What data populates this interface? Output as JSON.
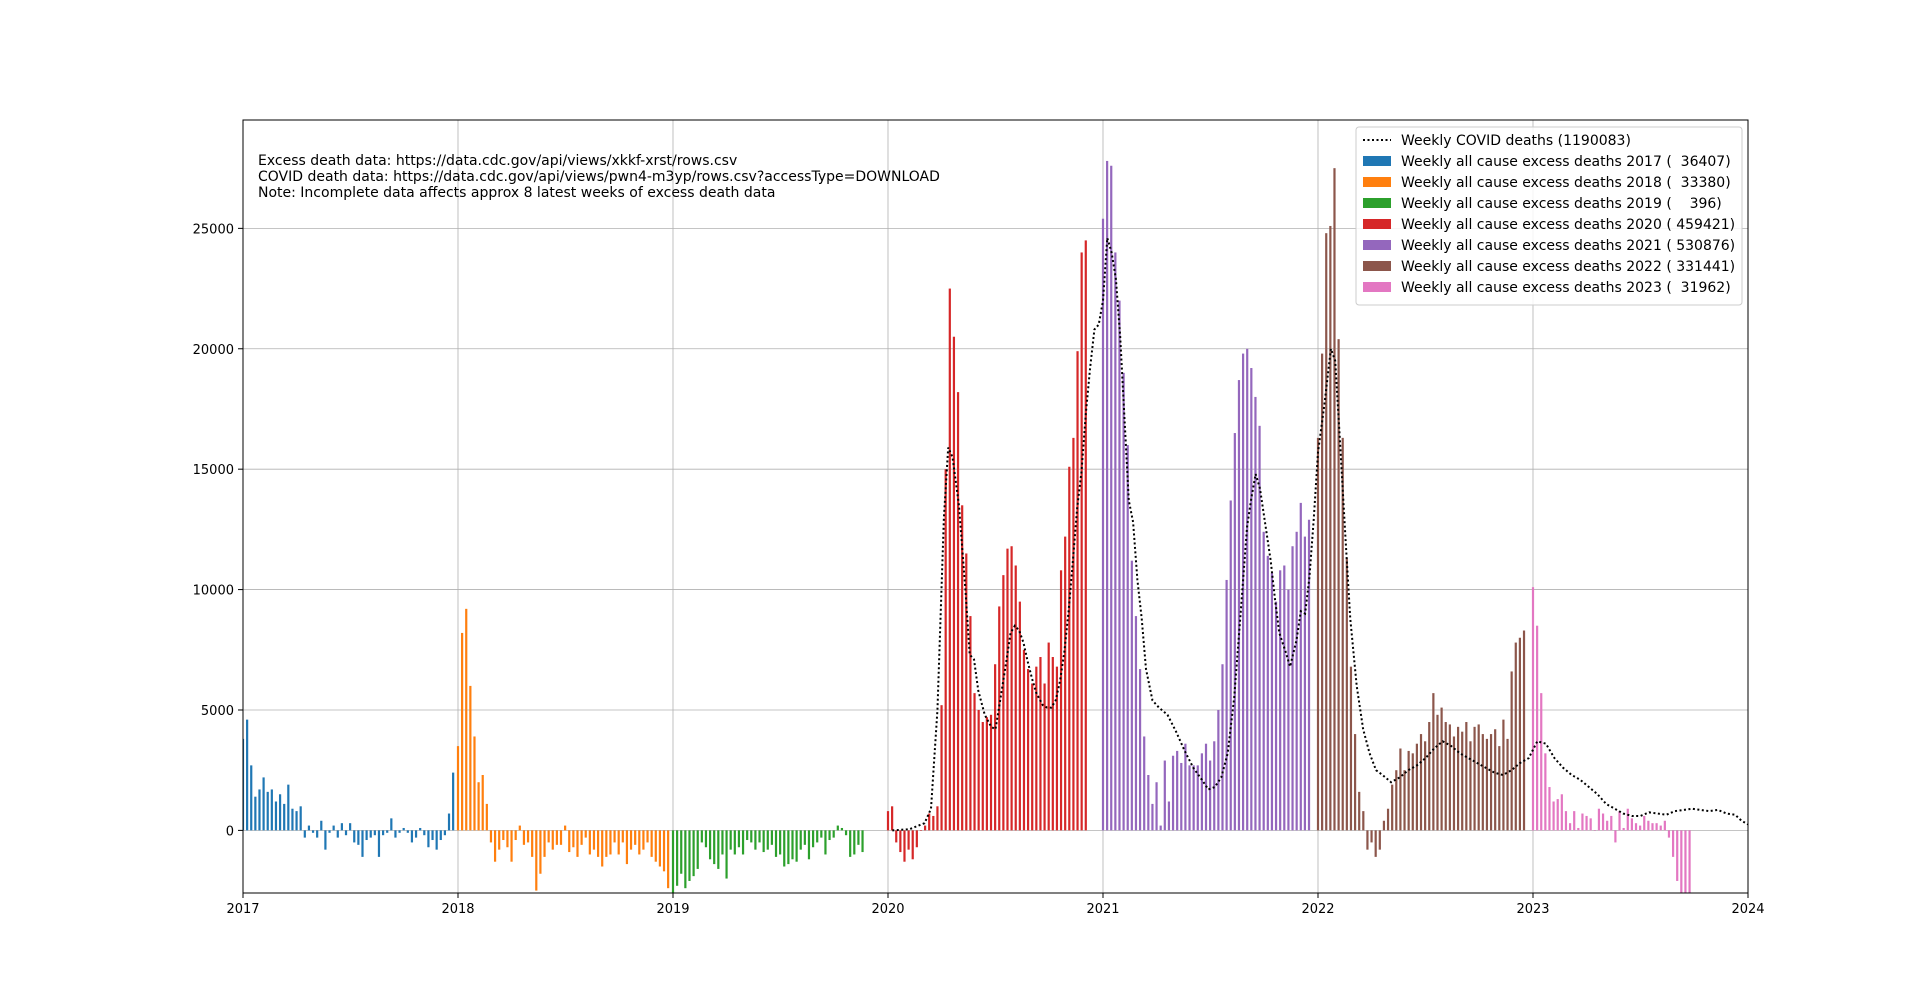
{
  "chart_data": {
    "type": "bar",
    "xlim": [
      2017,
      2024
    ],
    "ylim": [
      -2600,
      29500
    ],
    "grid": true,
    "legend_position": "top-right",
    "x_ticks": [
      {
        "value": 2017,
        "label": "2017"
      },
      {
        "value": 2018,
        "label": "2018"
      },
      {
        "value": 2019,
        "label": "2019"
      },
      {
        "value": 2020,
        "label": "2020"
      },
      {
        "value": 2021,
        "label": "2021"
      },
      {
        "value": 2022,
        "label": "2022"
      },
      {
        "value": 2023,
        "label": "2023"
      },
      {
        "value": 2024,
        "label": "2024"
      }
    ],
    "y_ticks": [
      {
        "value": 0,
        "label": "0"
      },
      {
        "value": 5000,
        "label": "5000"
      },
      {
        "value": 10000,
        "label": "10000"
      },
      {
        "value": 15000,
        "label": "15000"
      },
      {
        "value": 20000,
        "label": "20000"
      },
      {
        "value": 25000,
        "label": "25000"
      }
    ],
    "notes": [
      "Excess death data: https://data.cdc.gov/api/views/xkkf-xrst/rows.csv",
      "COVID death data: https://data.cdc.gov/api/views/pwn4-m3yp/rows.csv?accessType=DOWNLOAD",
      "Note: Incomplete data affects approx 8 latest weeks of excess death data"
    ],
    "covid_series": {
      "label": "Weekly COVID deaths (1190083)",
      "color": "#000000",
      "points": [
        [
          2020.02,
          0
        ],
        [
          2020.1,
          50
        ],
        [
          2020.17,
          300
        ],
        [
          2020.2,
          900
        ],
        [
          2020.23,
          5000
        ],
        [
          2020.26,
          13000
        ],
        [
          2020.28,
          15900
        ],
        [
          2020.3,
          15500
        ],
        [
          2020.33,
          13500
        ],
        [
          2020.36,
          10000
        ],
        [
          2020.38,
          7300
        ],
        [
          2020.4,
          7100
        ],
        [
          2020.42,
          5800
        ],
        [
          2020.45,
          4800
        ],
        [
          2020.48,
          4300
        ],
        [
          2020.5,
          4200
        ],
        [
          2020.52,
          5300
        ],
        [
          2020.55,
          7000
        ],
        [
          2020.57,
          8200
        ],
        [
          2020.59,
          8500
        ],
        [
          2020.61,
          8300
        ],
        [
          2020.63,
          7800
        ],
        [
          2020.65,
          7000
        ],
        [
          2020.67,
          6300
        ],
        [
          2020.69,
          5700
        ],
        [
          2020.72,
          5200
        ],
        [
          2020.74,
          5100
        ],
        [
          2020.76,
          5100
        ],
        [
          2020.78,
          5400
        ],
        [
          2020.8,
          6200
        ],
        [
          2020.82,
          7400
        ],
        [
          2020.84,
          9100
        ],
        [
          2020.86,
          11200
        ],
        [
          2020.88,
          13400
        ],
        [
          2020.9,
          14900
        ],
        [
          2020.92,
          17300
        ],
        [
          2020.94,
          19200
        ],
        [
          2020.96,
          20800
        ],
        [
          2020.98,
          21000
        ],
        [
          2021.0,
          22000
        ],
        [
          2021.02,
          24600
        ],
        [
          2021.04,
          24000
        ],
        [
          2021.06,
          22900
        ],
        [
          2021.08,
          20500
        ],
        [
          2021.1,
          17100
        ],
        [
          2021.12,
          13700
        ],
        [
          2021.14,
          12800
        ],
        [
          2021.16,
          10400
        ],
        [
          2021.18,
          8800
        ],
        [
          2021.2,
          6700
        ],
        [
          2021.23,
          5400
        ],
        [
          2021.26,
          5100
        ],
        [
          2021.3,
          4800
        ],
        [
          2021.34,
          4100
        ],
        [
          2021.38,
          3300
        ],
        [
          2021.42,
          2600
        ],
        [
          2021.46,
          2100
        ],
        [
          2021.49,
          1700
        ],
        [
          2021.52,
          1800
        ],
        [
          2021.55,
          2200
        ],
        [
          2021.58,
          3200
        ],
        [
          2021.61,
          5500
        ],
        [
          2021.64,
          9000
        ],
        [
          2021.67,
          12600
        ],
        [
          2021.69,
          13800
        ],
        [
          2021.71,
          14800
        ],
        [
          2021.73,
          14200
        ],
        [
          2021.75,
          13000
        ],
        [
          2021.78,
          11200
        ],
        [
          2021.8,
          9600
        ],
        [
          2021.82,
          8200
        ],
        [
          2021.85,
          7400
        ],
        [
          2021.87,
          6800
        ],
        [
          2021.9,
          7900
        ],
        [
          2021.92,
          9100
        ],
        [
          2021.94,
          9000
        ],
        [
          2021.96,
          10500
        ],
        [
          2021.98,
          12900
        ],
        [
          2022.0,
          15700
        ],
        [
          2022.03,
          17700
        ],
        [
          2022.06,
          20000
        ],
        [
          2022.08,
          19500
        ],
        [
          2022.1,
          16500
        ],
        [
          2022.13,
          11800
        ],
        [
          2022.15,
          8800
        ],
        [
          2022.18,
          6000
        ],
        [
          2022.21,
          4200
        ],
        [
          2022.24,
          3200
        ],
        [
          2022.27,
          2500
        ],
        [
          2022.3,
          2300
        ],
        [
          2022.34,
          2000
        ],
        [
          2022.38,
          2200
        ],
        [
          2022.42,
          2500
        ],
        [
          2022.46,
          2700
        ],
        [
          2022.5,
          3000
        ],
        [
          2022.54,
          3400
        ],
        [
          2022.58,
          3700
        ],
        [
          2022.62,
          3500
        ],
        [
          2022.66,
          3200
        ],
        [
          2022.7,
          3000
        ],
        [
          2022.74,
          2800
        ],
        [
          2022.78,
          2600
        ],
        [
          2022.82,
          2400
        ],
        [
          2022.86,
          2300
        ],
        [
          2022.9,
          2500
        ],
        [
          2022.94,
          2800
        ],
        [
          2022.98,
          3000
        ],
        [
          2023.02,
          3700
        ],
        [
          2023.06,
          3600
        ],
        [
          2023.1,
          3000
        ],
        [
          2023.14,
          2600
        ],
        [
          2023.18,
          2300
        ],
        [
          2023.22,
          2100
        ],
        [
          2023.26,
          1800
        ],
        [
          2023.3,
          1500
        ],
        [
          2023.34,
          1100
        ],
        [
          2023.38,
          900
        ],
        [
          2023.42,
          700
        ],
        [
          2023.46,
          600
        ],
        [
          2023.5,
          600
        ],
        [
          2023.54,
          750
        ],
        [
          2023.58,
          700
        ],
        [
          2023.62,
          650
        ],
        [
          2023.66,
          800
        ],
        [
          2023.7,
          850
        ],
        [
          2023.74,
          900
        ],
        [
          2023.78,
          850
        ],
        [
          2023.82,
          800
        ],
        [
          2023.86,
          850
        ],
        [
          2023.9,
          700
        ],
        [
          2023.94,
          650
        ],
        [
          2023.97,
          400
        ],
        [
          2024.0,
          250
        ]
      ]
    },
    "bar_series": [
      {
        "label": "Weekly all cause excess deaths 2017 (  36407)",
        "color": "#1f77b4",
        "start": 2017.0,
        "values": [
          3800,
          4600,
          2700,
          1400,
          1700,
          2200,
          1600,
          1700,
          1200,
          1500,
          1100,
          1900,
          900,
          800,
          1000,
          -300,
          200,
          -100,
          -300,
          400,
          -800,
          -100,
          200,
          -300,
          300,
          -200,
          300,
          -500,
          -600,
          -1100,
          -400,
          -300,
          -200,
          -1100,
          -200,
          -100,
          500,
          -300,
          -100,
          100,
          -100,
          -500,
          -300,
          100,
          -200,
          -700,
          -400,
          -800,
          -400,
          -200,
          700,
          2400
        ]
      },
      {
        "label": "Weekly all cause excess deaths 2018 (  33380)",
        "color": "#ff7f0e",
        "start": 2018.0,
        "values": [
          3500,
          8200,
          9200,
          6000,
          3900,
          2000,
          2300,
          1100,
          -500,
          -1300,
          -800,
          -400,
          -700,
          -1300,
          -400,
          200,
          -600,
          -500,
          -1100,
          -2500,
          -1800,
          -1100,
          -500,
          -800,
          -600,
          -600,
          200,
          -900,
          -700,
          -1100,
          -600,
          -300,
          -1000,
          -800,
          -1100,
          -1500,
          -1100,
          -1000,
          -500,
          -1000,
          -500,
          -1400,
          -800,
          -600,
          -1000,
          -800,
          -500,
          -1100,
          -1300,
          -1500,
          -1700,
          -2400
        ]
      },
      {
        "label": "Weekly all cause excess deaths 2019 (    396)",
        "color": "#2ca02c",
        "start": 2019.0,
        "values": [
          -2800,
          -2300,
          -1800,
          -2400,
          -2100,
          -1900,
          -1600,
          -500,
          -700,
          -1200,
          -1400,
          -1600,
          -1000,
          -2000,
          -800,
          -1000,
          -700,
          -1000,
          -400,
          -500,
          -800,
          -500,
          -900,
          -800,
          -600,
          -1100,
          -1000,
          -1500,
          -1400,
          -1200,
          -1300,
          -800,
          -600,
          -1200,
          -700,
          -500,
          -300,
          -1000,
          -400,
          -300,
          200,
          100,
          -200,
          -1100,
          -1000,
          -600,
          -900
        ]
      },
      {
        "label": "Weekly all cause excess deaths 2020 ( 459421)",
        "color": "#d62728",
        "start": 2020.0,
        "values": [
          800,
          1000,
          -500,
          -900,
          -1300,
          -800,
          -1200,
          -700,
          0,
          200,
          700,
          600,
          1000,
          5200,
          15000,
          22500,
          20500,
          18200,
          13500,
          11500,
          8900,
          5700,
          5000,
          4500,
          4700,
          4800,
          6900,
          9300,
          10600,
          11700,
          11800,
          11000,
          9500,
          7500,
          6700,
          6100,
          6800,
          7200,
          6100,
          7800,
          7200,
          6800,
          10800,
          12200,
          15100,
          16300,
          19900,
          24000,
          24500
        ]
      },
      {
        "label": "Weekly all cause excess deaths 2021 ( 530876)",
        "color": "#9467bd",
        "start": 2021.0,
        "values": [
          25400,
          27800,
          27600,
          24000,
          22000,
          19000,
          16000,
          11200,
          8900,
          6700,
          3900,
          2300,
          1100,
          2000,
          200,
          2900,
          1200,
          3100,
          3300,
          2800,
          3600,
          2700,
          2700,
          2700,
          3200,
          3600,
          2900,
          3700,
          5000,
          6900,
          10400,
          13700,
          16500,
          18700,
          19800,
          20000,
          19200,
          18000,
          16800,
          12400,
          11400,
          10700,
          9500,
          10800,
          11000,
          10000,
          11800,
          12400,
          13600,
          12200,
          12900
        ]
      },
      {
        "label": "Weekly all cause excess deaths 2022 ( 331441)",
        "color": "#8c564b",
        "start": 2022.0,
        "values": [
          16300,
          19800,
          24800,
          25100,
          27500,
          20400,
          16300,
          11300,
          6800,
          4000,
          1600,
          800,
          -800,
          -500,
          -1100,
          -800,
          400,
          900,
          1900,
          2500,
          3400,
          2500,
          3300,
          3200,
          3600,
          4000,
          3700,
          4500,
          5700,
          4800,
          5100,
          4500,
          4400,
          3900,
          4300,
          4100,
          4500,
          3700,
          4300,
          4400,
          4000,
          3800,
          4000,
          4200,
          3500,
          4600,
          3800,
          6600,
          7800,
          8000,
          8300
        ]
      },
      {
        "label": "Weekly all cause excess deaths 2023 (  31962)",
        "color": "#e377c2",
        "start": 2023.0,
        "values": [
          10100,
          8500,
          5700,
          3200,
          1800,
          1200,
          1300,
          1500,
          800,
          300,
          800,
          100,
          700,
          600,
          500,
          0,
          900,
          700,
          400,
          600,
          -500,
          800,
          100,
          900,
          500,
          300,
          200,
          600,
          400,
          300,
          300,
          200,
          400,
          -300,
          -1100,
          -2100,
          -2700,
          -2700,
          -2700
        ]
      }
    ]
  }
}
